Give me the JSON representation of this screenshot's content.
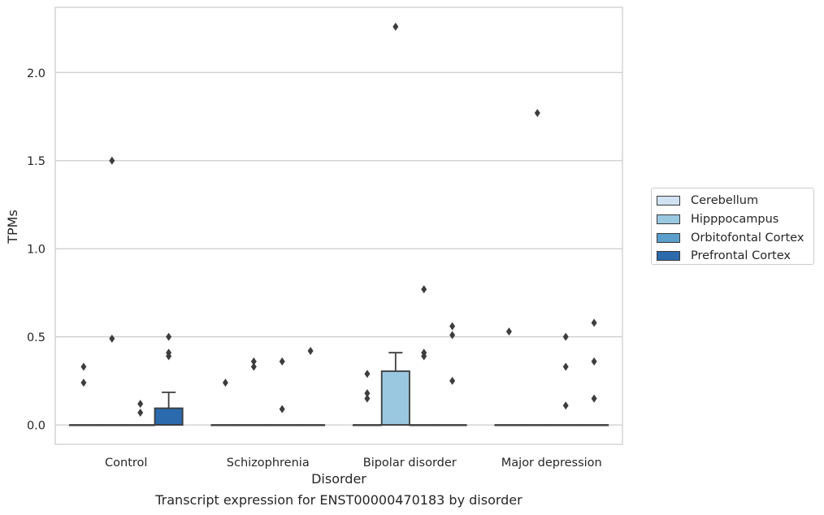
{
  "chart_data": {
    "type": "box",
    "title": "",
    "xlabel": "Disorder",
    "ylabel": "TPMs",
    "caption": "Transcript expression for ENST00000470183 by disorder",
    "ylim": [
      -0.11,
      2.37
    ],
    "yticks": [
      0.0,
      0.5,
      1.0,
      1.5,
      2.0
    ],
    "ytick_labels": [
      "0.0",
      "0.5",
      "1.0",
      "1.5",
      "2.0"
    ],
    "grid": "horizontal",
    "legend_position": "right",
    "categories": [
      "Control",
      "Schizophrenia",
      "Bipolar disorder",
      "Major depression"
    ],
    "series": [
      {
        "name": "Cerebellum",
        "color": "#d1e3f3",
        "boxes": [
          {
            "q1": 0,
            "median": 0,
            "q3": 0,
            "whisker_low": 0,
            "whisker_high": 0,
            "outliers": [
              0.24,
              0.33
            ]
          },
          {
            "q1": 0,
            "median": 0,
            "q3": 0,
            "whisker_low": 0,
            "whisker_high": 0,
            "outliers": [
              0.24
            ]
          },
          {
            "q1": 0,
            "median": 0,
            "q3": 0,
            "whisker_low": 0,
            "whisker_high": 0,
            "outliers": [
              0.15,
              0.18,
              0.29
            ]
          },
          {
            "q1": 0,
            "median": 0,
            "q3": 0,
            "whisker_low": 0,
            "whisker_high": 0,
            "outliers": [
              0.53
            ]
          }
        ]
      },
      {
        "name": "Hipppocampus",
        "color": "#9ac8e0",
        "boxes": [
          {
            "q1": 0,
            "median": 0,
            "q3": 0,
            "whisker_low": 0,
            "whisker_high": 0,
            "outliers": [
              0.49,
              1.5
            ]
          },
          {
            "q1": 0,
            "median": 0,
            "q3": 0,
            "whisker_low": 0,
            "whisker_high": 0,
            "outliers": [
              0.33,
              0.36
            ]
          },
          {
            "q1": 0,
            "median": 0,
            "q3": 0.305,
            "whisker_low": 0,
            "whisker_high": 0.41,
            "outliers": [
              2.26
            ]
          },
          {
            "q1": 0,
            "median": 0,
            "q3": 0,
            "whisker_low": 0,
            "whisker_high": 0,
            "outliers": [
              1.77
            ]
          }
        ]
      },
      {
        "name": "Orbitofontal Cortex",
        "color": "#5a9fcc",
        "boxes": [
          {
            "q1": 0,
            "median": 0,
            "q3": 0,
            "whisker_low": 0,
            "whisker_high": 0,
            "outliers": [
              0.07,
              0.12
            ]
          },
          {
            "q1": 0,
            "median": 0,
            "q3": 0,
            "whisker_low": 0,
            "whisker_high": 0,
            "outliers": [
              0.09,
              0.36
            ]
          },
          {
            "q1": 0,
            "median": 0,
            "q3": 0,
            "whisker_low": 0,
            "whisker_high": 0,
            "outliers": [
              0.39,
              0.41,
              0.77
            ]
          },
          {
            "q1": 0,
            "median": 0,
            "q3": 0,
            "whisker_low": 0,
            "whisker_high": 0,
            "outliers": [
              0.11,
              0.33,
              0.5
            ]
          }
        ]
      },
      {
        "name": "Prefrontal Cortex",
        "color": "#2a6aad",
        "boxes": [
          {
            "q1": 0,
            "median": 0,
            "q3": 0.095,
            "whisker_low": 0,
            "whisker_high": 0.185,
            "outliers": [
              0.39,
              0.41,
              0.5
            ]
          },
          {
            "q1": 0,
            "median": 0,
            "q3": 0,
            "whisker_low": 0,
            "whisker_high": 0,
            "outliers": [
              0.42
            ]
          },
          {
            "q1": 0,
            "median": 0,
            "q3": 0,
            "whisker_low": 0,
            "whisker_high": 0,
            "outliers": [
              0.25,
              0.51,
              0.56
            ]
          },
          {
            "q1": 0,
            "median": 0,
            "q3": 0,
            "whisker_low": 0,
            "whisker_high": 0,
            "outliers": [
              0.15,
              0.36,
              0.58
            ]
          }
        ]
      }
    ]
  }
}
